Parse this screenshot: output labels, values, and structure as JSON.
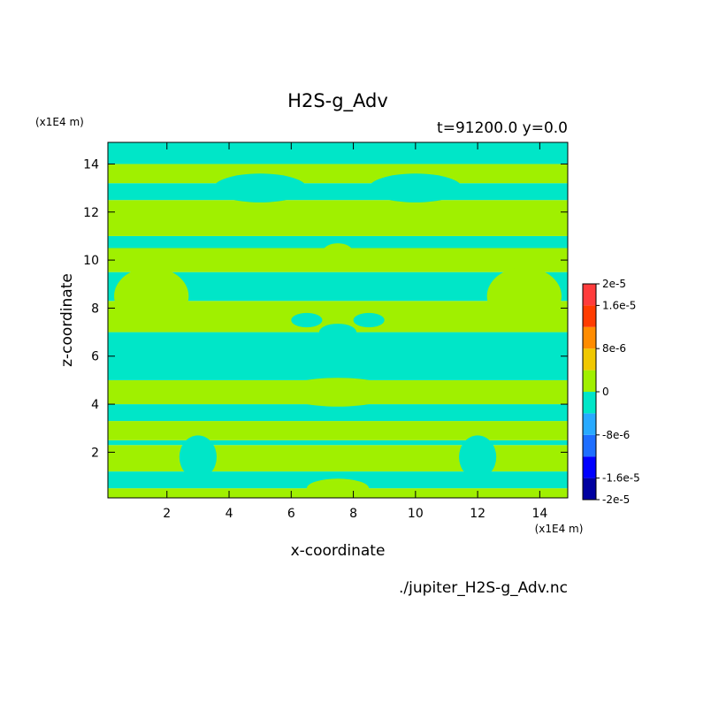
{
  "chart_data": {
    "type": "heatmap",
    "title": "H2S-g_Adv",
    "subtitle": "t=91200.0 y=0.0",
    "xlabel": "x-coordinate",
    "ylabel": "z-coordinate",
    "x_unit": "(x1E4 m)",
    "y_unit": "(x1E4 m)",
    "source_file": "./jupiter_H2S-g_Adv.nc",
    "xlim": [
      0.1,
      14.9
    ],
    "ylim": [
      0.1,
      14.9
    ],
    "x_ticks": [
      2,
      4,
      6,
      8,
      10,
      12,
      14
    ],
    "y_ticks": [
      2,
      4,
      6,
      8,
      10,
      12,
      14
    ],
    "colorbar": {
      "levels": [
        -2e-05,
        -1.6e-05,
        -1.2e-05,
        -8e-06,
        -4e-06,
        0,
        4e-06,
        8e-06,
        1.2e-05,
        1.6e-05,
        2e-05
      ],
      "colors": [
        "#0000a0",
        "#0000ff",
        "#1e6eff",
        "#28aaff",
        "#00e6c8",
        "#a0f000",
        "#f0c800",
        "#ff8c00",
        "#ff3c00",
        "#ff3c3c"
      ],
      "tick_labels": [
        "2e-5",
        "1.6e-5",
        "8e-6",
        "0",
        "-8e-6",
        "-1.6e-5",
        "-2e-5"
      ],
      "tick_values": [
        2e-05,
        1.6e-05,
        8e-06,
        0,
        -8e-06,
        -1.6e-05,
        -2e-05
      ]
    },
    "field_colors": {
      "positive": "#a0f000",
      "negative": "#00e6c8"
    },
    "bands": [
      {
        "z": [
          0.1,
          0.5
        ],
        "value": 2e-06
      },
      {
        "z": [
          0.5,
          1.2
        ],
        "value": -2e-06
      },
      {
        "z": [
          1.2,
          2.3
        ],
        "value": 2e-06
      },
      {
        "z": [
          2.3,
          2.5
        ],
        "value": -2e-06
      },
      {
        "z": [
          2.5,
          3.3
        ],
        "value": 2e-06
      },
      {
        "z": [
          3.3,
          4.0
        ],
        "value": -2e-06
      },
      {
        "z": [
          4.0,
          5.0
        ],
        "value": 2e-06
      },
      {
        "z": [
          5.0,
          7.0
        ],
        "value": -2e-06
      },
      {
        "z": [
          7.0,
          8.3
        ],
        "value": 2e-06
      },
      {
        "z": [
          8.3,
          9.5
        ],
        "value": -2e-06
      },
      {
        "z": [
          9.5,
          10.5
        ],
        "value": 2e-06
      },
      {
        "z": [
          10.5,
          11.0
        ],
        "value": -2e-06
      },
      {
        "z": [
          11.0,
          12.5
        ],
        "value": 2e-06
      },
      {
        "z": [
          12.5,
          13.2
        ],
        "value": -2e-06
      },
      {
        "z": [
          13.2,
          14.0
        ],
        "value": 2e-06
      },
      {
        "z": [
          14.0,
          14.9
        ],
        "value": -2e-06
      }
    ],
    "blobs": [
      {
        "x": 7.5,
        "z": 10.3,
        "rx": 0.5,
        "rz": 0.4,
        "value": 2e-06
      },
      {
        "x": 7.5,
        "z": 7.0,
        "rx": 0.6,
        "rz": 0.35,
        "value": -2e-06
      },
      {
        "x": 6.5,
        "z": 7.5,
        "rx": 0.5,
        "rz": 0.3,
        "value": -2e-06
      },
      {
        "x": 8.5,
        "z": 7.5,
        "rx": 0.5,
        "rz": 0.3,
        "value": -2e-06
      },
      {
        "x": 7.5,
        "z": 4.5,
        "rx": 1.8,
        "rz": 0.6,
        "value": 2e-06
      },
      {
        "x": 1.5,
        "z": 8.5,
        "rx": 1.2,
        "rz": 1.2,
        "value": 2e-06
      },
      {
        "x": 13.5,
        "z": 8.5,
        "rx": 1.2,
        "rz": 1.2,
        "value": 2e-06
      },
      {
        "x": 5.0,
        "z": 13.0,
        "rx": 1.5,
        "rz": 0.6,
        "value": -2e-06
      },
      {
        "x": 10.0,
        "z": 13.0,
        "rx": 1.5,
        "rz": 0.6,
        "value": -2e-06
      },
      {
        "x": 3.0,
        "z": 1.8,
        "rx": 0.6,
        "rz": 0.9,
        "value": -2e-06
      },
      {
        "x": 12.0,
        "z": 1.8,
        "rx": 0.6,
        "rz": 0.9,
        "value": -2e-06
      },
      {
        "x": 7.5,
        "z": 0.5,
        "rx": 1.0,
        "rz": 0.4,
        "value": 2e-06
      }
    ]
  }
}
